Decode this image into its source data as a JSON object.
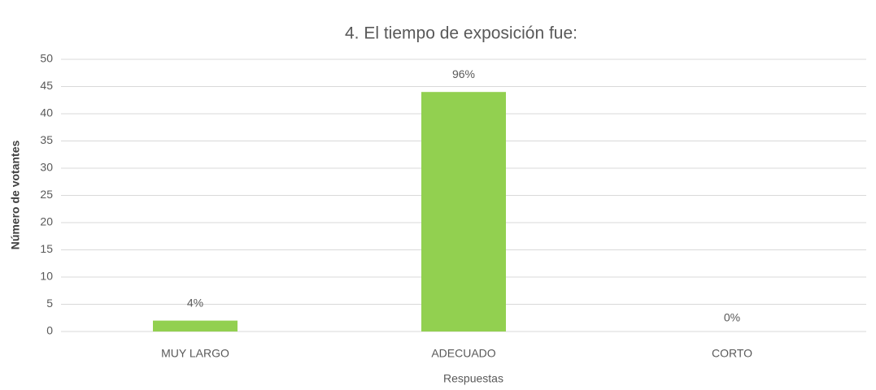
{
  "chart_data": {
    "type": "bar",
    "title": "4. El tiempo de exposición fue:",
    "x_label": "Respuestas",
    "y_label": "Número de votantes",
    "categories": [
      "MUY LARGO",
      "ADECUADO",
      "CORTO"
    ],
    "values": [
      2,
      44,
      0
    ],
    "annotations": [
      "4%",
      "96%",
      "0%"
    ],
    "color": "#92d050",
    "ylim": [
      0,
      50
    ],
    "yticks": [
      0,
      5,
      10,
      15,
      20,
      25,
      30,
      35,
      40,
      45,
      50
    ],
    "grid": true
  }
}
